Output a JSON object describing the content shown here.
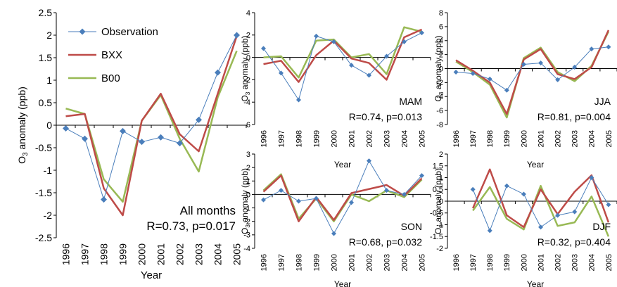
{
  "colors": {
    "observation": "#4a7ebb",
    "bxx": "#be4b48",
    "b00": "#98b954",
    "axis": "#000000"
  },
  "ylabel_main": "O",
  "ylabel_sub": "3",
  "ylabel_rest": " anomaly (ppb)",
  "xlabel": "Year",
  "chart_data": [
    {
      "id": "all",
      "type": "line",
      "categories": [
        "1996",
        "1997",
        "1998",
        "1999",
        "2000",
        "2001",
        "2002",
        "2003",
        "2004",
        "2005"
      ],
      "ylim": [
        -2.5,
        2.5
      ],
      "yticks": [
        -2.5,
        -2,
        -1.5,
        -1,
        -0.5,
        0,
        0.5,
        1,
        1.5,
        2,
        2.5
      ],
      "ytick_labels": [
        "-2.5",
        "-2",
        "-1.5",
        "-1",
        "-0.5",
        "0",
        "0.5",
        "1",
        "1.5",
        "2",
        "2.5"
      ],
      "season": "All months",
      "stat": "R=0.73, p=0.017",
      "legend": [
        "Observation",
        "BXX",
        "B00"
      ],
      "series": [
        {
          "name": "Observation",
          "values": [
            -0.07,
            -0.3,
            -1.65,
            -0.13,
            -0.37,
            -0.27,
            -0.4,
            0.12,
            1.17,
            2.0
          ]
        },
        {
          "name": "BXX",
          "values": [
            0.2,
            0.25,
            -1.4,
            -2.0,
            0.1,
            0.7,
            -0.2,
            -0.58,
            0.7,
            1.98
          ]
        },
        {
          "name": "B00",
          "values": [
            0.37,
            0.25,
            -1.2,
            -1.7,
            0.1,
            0.67,
            -0.3,
            -1.03,
            0.62,
            1.65
          ]
        }
      ]
    },
    {
      "id": "mam",
      "type": "line",
      "categories": [
        "1996",
        "1997",
        "1998",
        "1999",
        "2000",
        "2001",
        "2002",
        "2003",
        "2004",
        "2005"
      ],
      "ylim": [
        -6,
        4
      ],
      "yticks": [
        -6,
        -4,
        -2,
        0,
        2,
        4
      ],
      "ytick_labels": [
        "-6",
        "-4",
        "-2",
        "0",
        "2",
        "4"
      ],
      "season": "MAM",
      "stat": "R=0.74, p=0.013",
      "series": [
        {
          "name": "Observation",
          "values": [
            0.8,
            -1.4,
            -3.8,
            1.9,
            1.4,
            -0.7,
            -1.6,
            0.1,
            1.4,
            2.2
          ]
        },
        {
          "name": "BXX",
          "values": [
            -0.6,
            -0.3,
            -2.2,
            0.2,
            1.5,
            -0.1,
            -0.5,
            -2.0,
            1.8,
            2.5
          ]
        },
        {
          "name": "B00",
          "values": [
            0.0,
            0.1,
            -1.8,
            1.5,
            1.6,
            0.0,
            0.3,
            -1.5,
            2.7,
            2.3
          ]
        }
      ]
    },
    {
      "id": "jja",
      "type": "line",
      "categories": [
        "1996",
        "1997",
        "1998",
        "1999",
        "2000",
        "2001",
        "2002",
        "2003",
        "2004",
        "2005"
      ],
      "ylim": [
        -8,
        8
      ],
      "yticks": [
        -8,
        -6,
        -4,
        -2,
        0,
        2,
        4,
        6,
        8
      ],
      "ytick_labels": [
        "-8",
        "-6",
        "-4",
        "-2",
        "0",
        "2",
        "4",
        "6",
        "8"
      ],
      "season": "JJA",
      "stat": "R=0.81, p=0.004",
      "series": [
        {
          "name": "Observation",
          "values": [
            -0.5,
            -0.7,
            -1.5,
            -3.1,
            0.6,
            0.8,
            -1.6,
            0.2,
            2.8,
            3.1
          ]
        },
        {
          "name": "BXX",
          "values": [
            1.2,
            -0.3,
            -2.0,
            -6.5,
            1.3,
            2.8,
            -0.8,
            -1.5,
            0.2,
            5.5
          ]
        },
        {
          "name": "B00",
          "values": [
            1.0,
            -0.5,
            -2.3,
            -7.0,
            1.5,
            3.0,
            -0.5,
            -1.8,
            0.4,
            5.3
          ]
        }
      ]
    },
    {
      "id": "son",
      "type": "line",
      "categories": [
        "1996",
        "1997",
        "1998",
        "1999",
        "2000",
        "2001",
        "2002",
        "2003",
        "2004",
        "2005"
      ],
      "ylim": [
        -4,
        3
      ],
      "yticks": [
        -4,
        -3,
        -2,
        -1,
        0,
        1,
        2,
        3
      ],
      "ytick_labels": [
        "-4",
        "-3",
        "-2",
        "-1",
        "0",
        "1",
        "2",
        "3"
      ],
      "season": "SON",
      "stat": "R=0.68, p=0.032",
      "series": [
        {
          "name": "Observation",
          "values": [
            -0.4,
            0.3,
            -0.5,
            -0.3,
            -2.9,
            -0.6,
            2.5,
            0.3,
            0.0,
            1.4
          ]
        },
        {
          "name": "BXX",
          "values": [
            0.2,
            1.4,
            -2.0,
            -0.2,
            -1.9,
            0.1,
            0.4,
            0.7,
            -0.1,
            1.2
          ]
        },
        {
          "name": "B00",
          "values": [
            0.3,
            1.5,
            -1.8,
            -0.3,
            -2.0,
            0.0,
            -0.5,
            0.3,
            -0.2,
            1.1
          ]
        }
      ]
    },
    {
      "id": "djf",
      "type": "line",
      "categories": [
        "1996",
        "1997",
        "1998",
        "1999",
        "2000",
        "2001",
        "2002",
        "2003",
        "2004",
        "2005"
      ],
      "ylim": [
        -2,
        2
      ],
      "yticks": [
        -2,
        -1.5,
        -1,
        -0.5,
        0,
        0.5,
        1,
        1.5,
        2
      ],
      "ytick_labels": [
        "-2",
        "-1.5",
        "-1",
        "-0.5",
        "0",
        "0.5",
        "1",
        "1.5",
        "2"
      ],
      "season": "DJF",
      "stat": "R=0.32, p=0.404",
      "series": [
        {
          "name": "Observation",
          "values": [
            null,
            0.5,
            -1.25,
            0.65,
            0.3,
            -1.1,
            -0.6,
            -0.45,
            1.0,
            -0.15
          ]
        },
        {
          "name": "BXX",
          "values": [
            null,
            -0.3,
            1.35,
            -0.6,
            -1.1,
            0.5,
            -0.55,
            0.4,
            1.1,
            -0.9
          ]
        },
        {
          "name": "B00",
          "values": [
            null,
            -0.4,
            0.6,
            -0.75,
            -1.2,
            0.65,
            -1.05,
            -0.9,
            0.2,
            -1.5
          ]
        }
      ]
    }
  ]
}
